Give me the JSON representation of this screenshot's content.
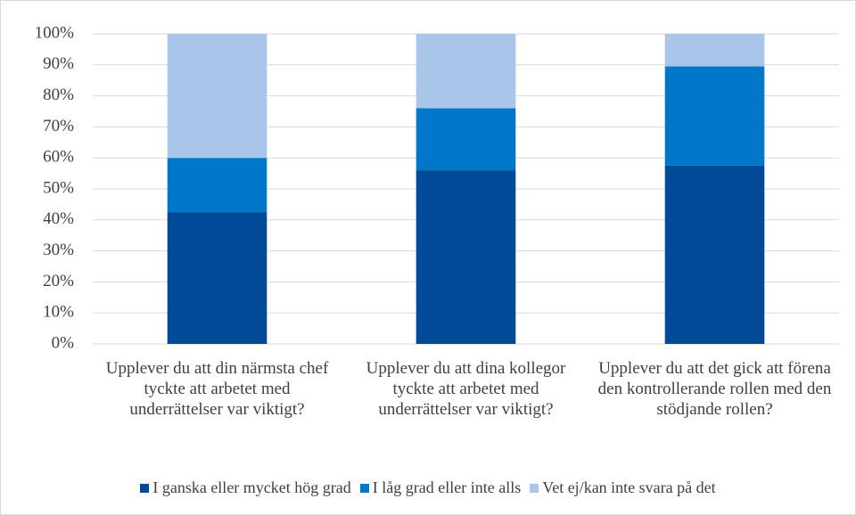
{
  "chart_data": {
    "type": "stacked_bar",
    "categories": [
      "Upplever du att din närmsta chef tyckte att arbetet med underrättelser var viktigt?",
      "Upplever du att dina kollegor tyckte att arbetet med underrättelser var viktigt?",
      "Upplever du att det gick att förena den kontrollerande rollen med den stödjande rollen?"
    ],
    "series": [
      {
        "name": "I ganska eller mycket hög grad",
        "color": "#004a97",
        "values": [
          42.5,
          56,
          57.5
        ]
      },
      {
        "name": "I låg grad eller inte alls",
        "color": "#0077c8",
        "values": [
          17.5,
          20,
          32
        ]
      },
      {
        "name": "Vet ej/kan inte svara på det",
        "color": "#a9c6ea",
        "values": [
          40,
          24,
          10.5
        ]
      }
    ],
    "ylim": [
      0,
      100
    ],
    "yticks": [
      {
        "value": 0,
        "label": "0%"
      },
      {
        "value": 10,
        "label": "10%"
      },
      {
        "value": 20,
        "label": "20%"
      },
      {
        "value": 30,
        "label": "30%"
      },
      {
        "value": 40,
        "label": "40%"
      },
      {
        "value": 50,
        "label": "50%"
      },
      {
        "value": 60,
        "label": "60%"
      },
      {
        "value": 70,
        "label": "70%"
      },
      {
        "value": 80,
        "label": "80%"
      },
      {
        "value": 90,
        "label": "90%"
      },
      {
        "value": 100,
        "label": "100%"
      }
    ],
    "grid": true,
    "legend": "bottom"
  }
}
